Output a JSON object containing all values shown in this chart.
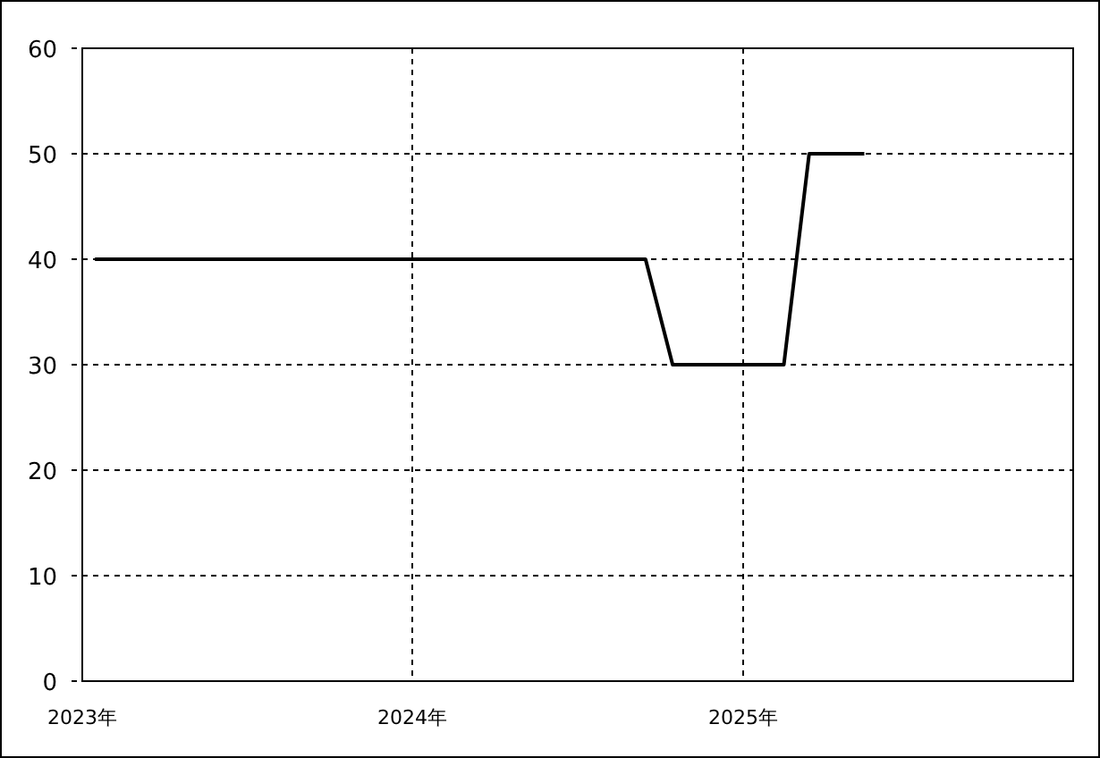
{
  "chart_data": {
    "type": "line",
    "x": [
      "2023-01-15",
      "2024-09-15",
      "2024-10-15",
      "2025-02-15",
      "2025-03-15",
      "2025-05-15"
    ],
    "series": [
      {
        "color": "#000000",
        "values": [
          40,
          40,
          30,
          30,
          50,
          50
        ]
      }
    ],
    "xlim": [
      "2023-01-01",
      "2026-01-01"
    ],
    "xticks": [
      {
        "value": "2023-01-01",
        "label": "2023年"
      },
      {
        "value": "2024-01-01",
        "label": "2024年"
      },
      {
        "value": "2025-01-01",
        "label": "2025年"
      }
    ],
    "ylim": [
      0,
      60
    ],
    "yticks": [
      0,
      10,
      20,
      30,
      40,
      50,
      60
    ],
    "grid": true,
    "line_style": "solid"
  }
}
